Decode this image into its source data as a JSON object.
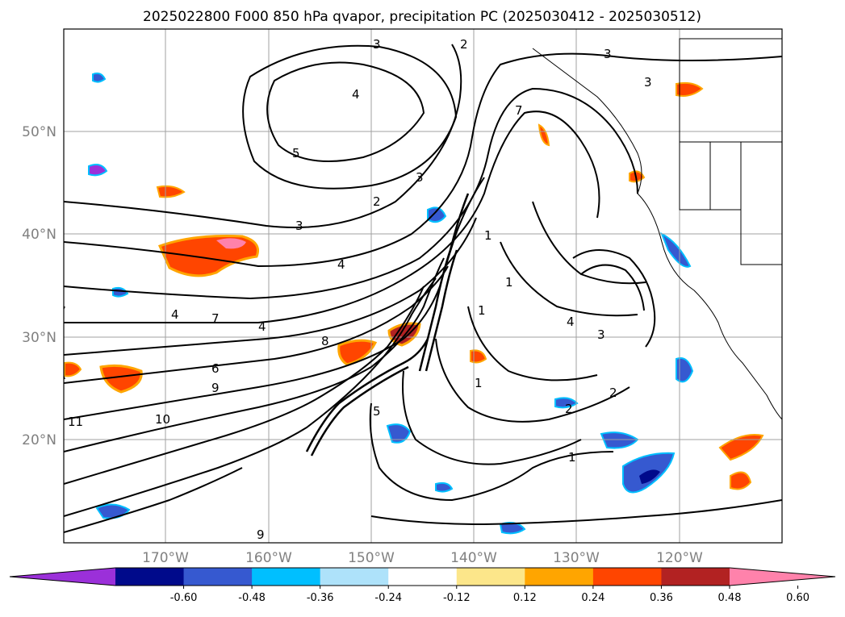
{
  "title": "2025022800 F000 850 hPa qvapor, precipitation PC (2025030412 - 2025030512)",
  "lat_labels": [
    "50°N",
    "40°N",
    "30°N",
    "20°N"
  ],
  "lon_labels": [
    "170°W",
    "160°W",
    "150°W",
    "140°W",
    "130°W",
    "120°W"
  ],
  "colorbar": {
    "ticks": [
      "-0.60",
      "-0.48",
      "-0.36",
      "-0.24",
      "-0.12",
      "0.12",
      "0.24",
      "0.36",
      "0.48",
      "0.60"
    ],
    "colors": [
      "#9b30d9",
      "#000a8b",
      "#3659d0",
      "#00bfff",
      "#aee2fa",
      "#ffffff",
      "#fce68a",
      "#ffa500",
      "#ff4500",
      "#b22222",
      "#ff82ab"
    ]
  },
  "contour_labels": [
    "3",
    "2",
    "3",
    "3",
    "4",
    "5",
    "3",
    "2",
    "3",
    "4",
    "4",
    "4",
    "7",
    "8",
    "6",
    "9",
    "11",
    "10",
    "5",
    "1",
    "2",
    "1",
    "4",
    "3",
    "7",
    "1",
    "1",
    "1",
    "2",
    "9"
  ],
  "colors": {
    "frame": "#000000",
    "grid": "#a0a0a0",
    "axis_text": "#808080"
  }
}
